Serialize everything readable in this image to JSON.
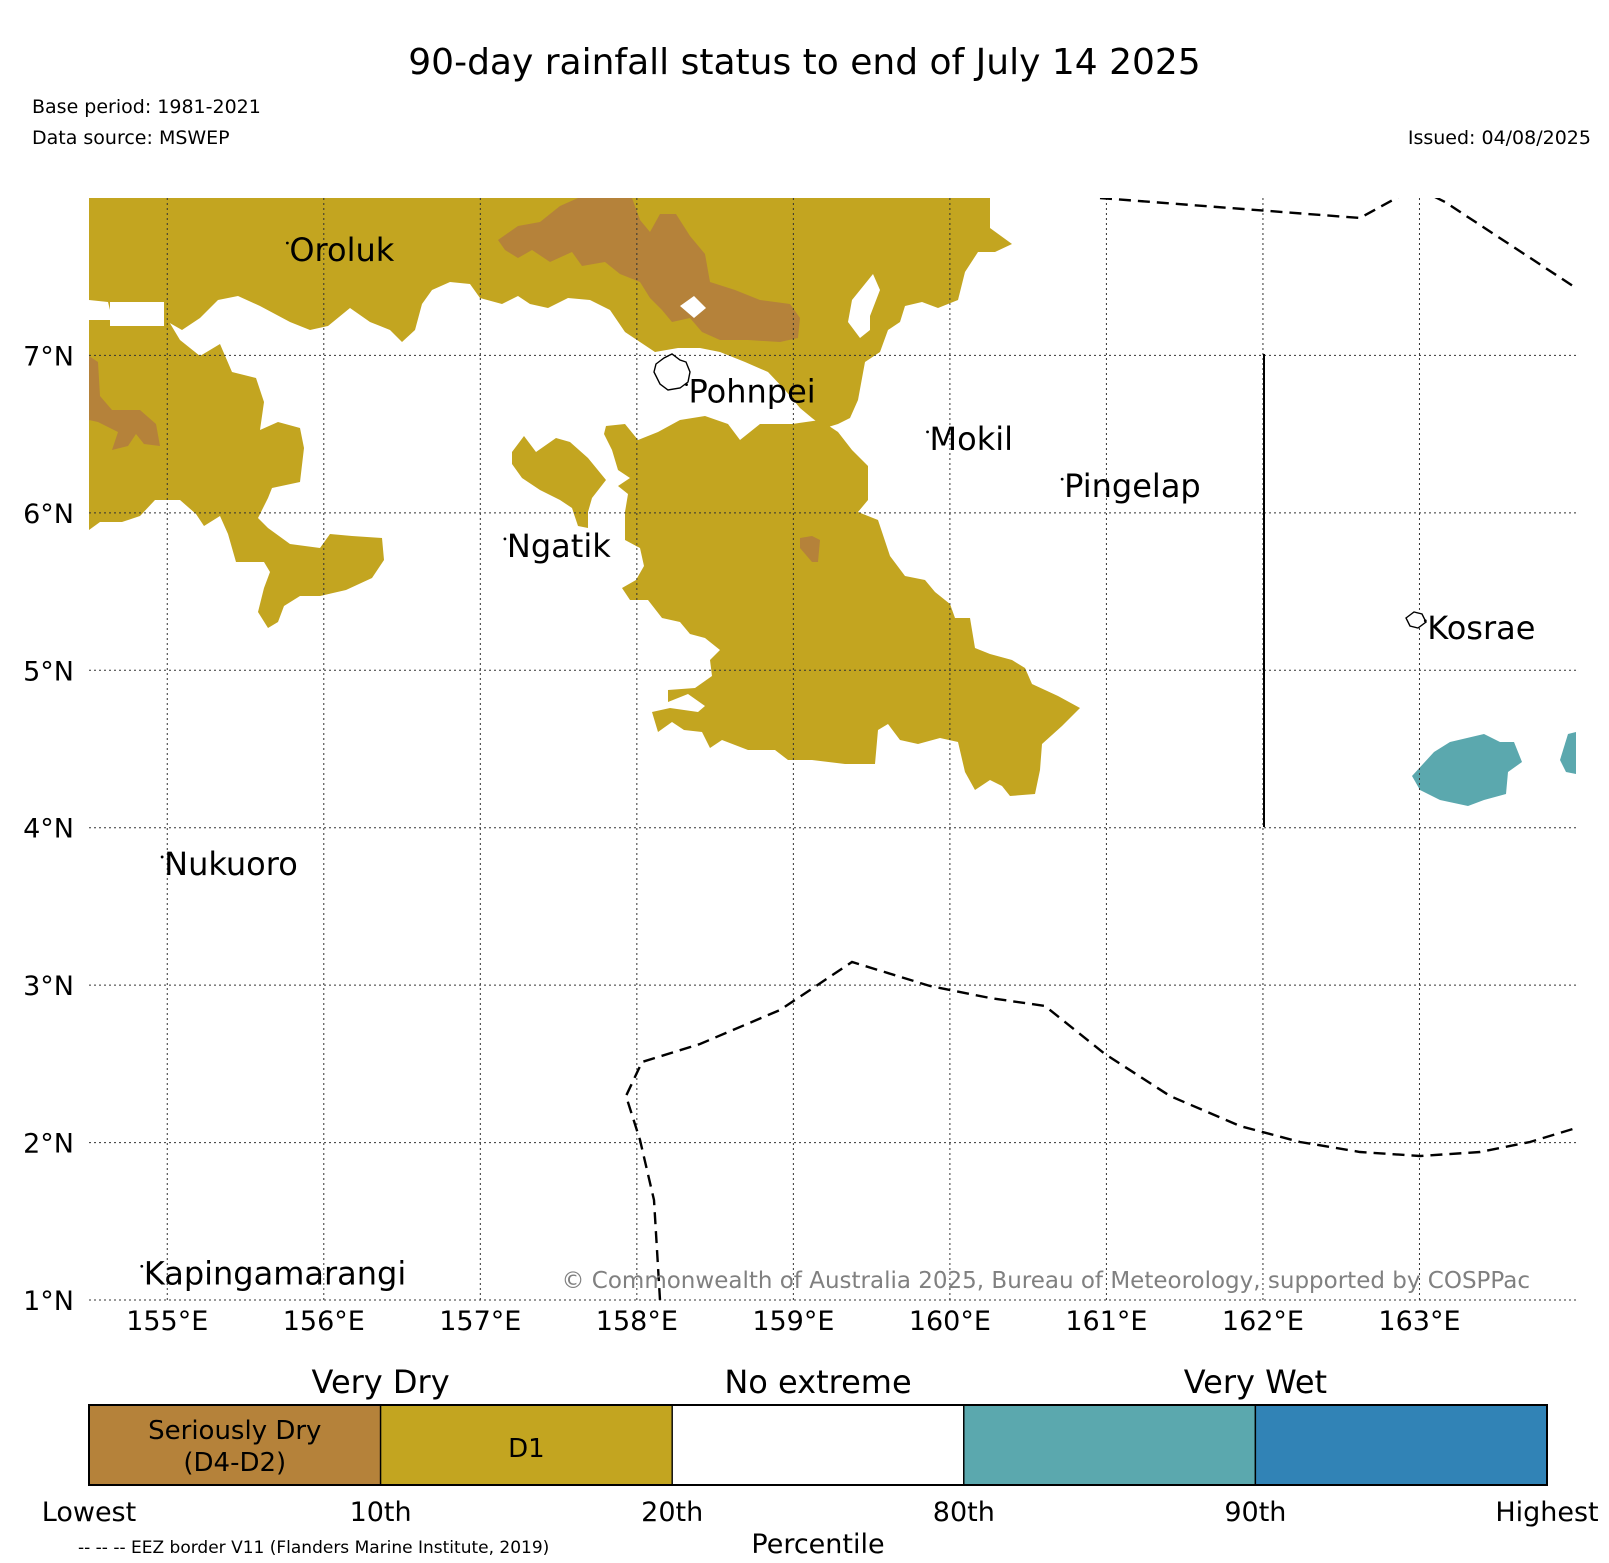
{
  "title": "90-day rainfall status to end of July 14 2025",
  "base_period": "Base period: 1981-2021",
  "data_source": "Data source: MSWEP",
  "issued": "Issued: 04/08/2025",
  "copyright": "© Commonwealth of Australia 2025, Bureau of Meteorology, supported by COSPPac",
  "eez_note": "-- -- -- EEZ border V11 (Flanders Marine Institute, 2019)",
  "map": {
    "lon_range": [
      154.5,
      164.0
    ],
    "lat_range": [
      1.0,
      8.0
    ],
    "lon_ticks": [
      "155°E",
      "156°E",
      "157°E",
      "158°E",
      "159°E",
      "160°E",
      "161°E",
      "162°E",
      "163°E"
    ],
    "lat_ticks": [
      "1°N",
      "2°N",
      "3°N",
      "4°N",
      "5°N",
      "6°N",
      "7°N"
    ],
    "grid": "dotted",
    "places": [
      {
        "name": "Oroluk",
        "lon": 155.78,
        "lat": 7.6
      },
      {
        "name": "Pohnpei",
        "lon": 158.33,
        "lat": 6.7
      },
      {
        "name": "Mokil",
        "lon": 159.87,
        "lat": 6.4
      },
      {
        "name": "Pingelap",
        "lon": 160.73,
        "lat": 6.1
      },
      {
        "name": "Ngatik",
        "lon": 157.17,
        "lat": 5.72
      },
      {
        "name": "Kosrae",
        "lon": 163.05,
        "lat": 5.2
      },
      {
        "name": "Nukuoro",
        "lon": 154.98,
        "lat": 3.7
      },
      {
        "name": "Kapingamarangi",
        "lon": 154.85,
        "lat": 1.1
      }
    ],
    "colors": {
      "seriously_dry": "#b5823a",
      "d1": "#c3a520",
      "very_wet_90": "#5ba8ae",
      "very_wet_max": "#3183b6"
    }
  },
  "legend": {
    "groups": [
      "Very Dry",
      "No extreme",
      "Very Wet"
    ],
    "boxes": [
      {
        "label_line1": "Seriously Dry",
        "label_line2": "(D4-D2)",
        "color": "#b5823a"
      },
      {
        "label_line1": "D1",
        "label_line2": "",
        "color": "#c3a520"
      },
      {
        "label_line1": "",
        "label_line2": "",
        "color": "#ffffff"
      },
      {
        "label_line1": "",
        "label_line2": "",
        "color": "#5ba8ae"
      },
      {
        "label_line1": "",
        "label_line2": "",
        "color": "#3183b6"
      }
    ],
    "ticks": [
      "Lowest",
      "10th",
      "20th",
      "80th",
      "90th",
      "Highest"
    ],
    "axis_label": "Percentile"
  }
}
